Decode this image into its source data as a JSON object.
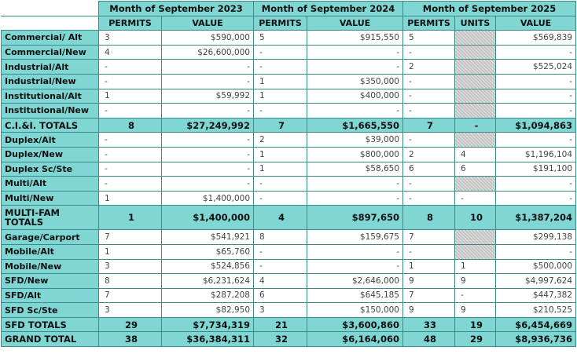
{
  "table": {
    "header": {
      "months": [
        "Month of September 2023",
        "Month of September 2024",
        "Month of September 2025"
      ],
      "columns": [
        "PERMITS",
        "VALUE",
        "PERMITS",
        "VALUE",
        "PERMITS",
        "UNITS",
        "VALUE"
      ]
    },
    "rows": [
      {
        "label": "Commercial/ Alt",
        "cells": [
          "3",
          "$590,000",
          "5",
          "$915,550",
          "5",
          null,
          "$569,839"
        ]
      },
      {
        "label": "Commercial/New",
        "cells": [
          "4",
          "$26,600,000",
          "-",
          "-",
          "-",
          null,
          "-"
        ]
      },
      {
        "label": "Industrial/Alt",
        "cells": [
          "-",
          "-",
          "-",
          "-",
          "2",
          null,
          "$525,024"
        ]
      },
      {
        "label": "Industrial/New",
        "cells": [
          "-",
          "-",
          "1",
          "$350,000",
          "-",
          null,
          "-"
        ]
      },
      {
        "label": "Institutional/Alt",
        "cells": [
          "1",
          "$59,992",
          "1",
          "$400,000",
          "-",
          null,
          "-"
        ]
      },
      {
        "label": "Institutional/New",
        "cells": [
          "-",
          "-",
          "-",
          "-",
          "-",
          null,
          "-"
        ]
      },
      {
        "label": "C.I.&I. TOTALS",
        "highlight": true,
        "cells": [
          "8",
          "$27,249,992",
          "7",
          "$1,665,550",
          "7",
          "-",
          "$1,094,863"
        ]
      },
      {
        "label": "Duplex/Alt",
        "cells": [
          "-",
          "-",
          "2",
          "$39,000",
          "-",
          null,
          "-"
        ]
      },
      {
        "label": "Duplex/New",
        "cells": [
          "-",
          "-",
          "1",
          "$800,000",
          "2",
          "4",
          "$1,196,104"
        ]
      },
      {
        "label": "Duplex Sc/Ste",
        "cells": [
          "-",
          "-",
          "1",
          "$58,650",
          "6",
          "6",
          "$191,100"
        ]
      },
      {
        "label": "Multi/Alt",
        "cells": [
          "-",
          "-",
          "-",
          "-",
          "-",
          null,
          "-"
        ]
      },
      {
        "label": "Multi/New",
        "cells": [
          "1",
          "$1,400,000",
          "-",
          "-",
          "-",
          "-",
          "-"
        ]
      },
      {
        "label": "MULTI-FAM TOTALS",
        "highlight": true,
        "cells": [
          "1",
          "$1,400,000",
          "4",
          "$897,650",
          "8",
          "10",
          "$1,387,204"
        ]
      },
      {
        "label": "Garage/Carport",
        "cells": [
          "7",
          "$541,921",
          "8",
          "$159,675",
          "7",
          null,
          "$299,138"
        ]
      },
      {
        "label": "Mobile/Alt",
        "cells": [
          "1",
          "$65,760",
          "-",
          "-",
          "-",
          null,
          "-"
        ]
      },
      {
        "label": "Mobile/New",
        "cells": [
          "3",
          "$524,856",
          "-",
          "-",
          "1",
          "1",
          "$500,000"
        ]
      },
      {
        "label": "SFD/New",
        "cells": [
          "8",
          "$6,231,624",
          "4",
          "$2,646,000",
          "9",
          "9",
          "$4,997,624"
        ]
      },
      {
        "label": "SFD/Alt",
        "cells": [
          "7",
          "$287,208",
          "6",
          "$645,185",
          "7",
          "-",
          "$447,382"
        ]
      },
      {
        "label": "SFD Sc/Ste",
        "cells": [
          "3",
          "$82,950",
          "3",
          "$150,000",
          "9",
          "9",
          "$210,525"
        ]
      },
      {
        "label": "SFD TOTALS",
        "highlight": true,
        "cells": [
          "29",
          "$7,734,319",
          "21",
          "$3,600,860",
          "33",
          "19",
          "$6,454,669"
        ]
      },
      {
        "label": "GRAND TOTAL",
        "highlight": true,
        "cells": [
          "38",
          "$36,384,311",
          "32",
          "$6,164,060",
          "48",
          "29",
          "$8,936,736"
        ]
      }
    ]
  }
}
